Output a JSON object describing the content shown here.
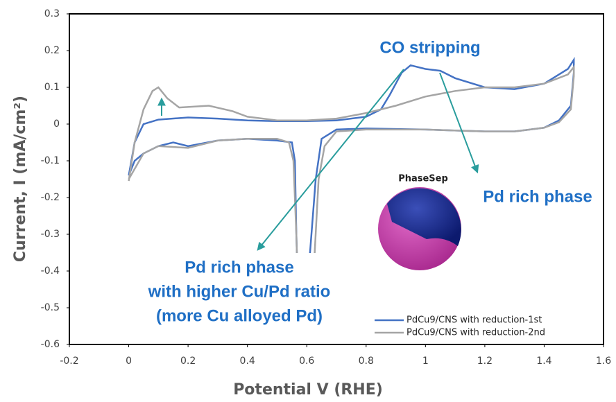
{
  "chart_data": {
    "type": "line",
    "x_label": "Potential V (RHE)",
    "y_label": "Current, I (mA/cm²)",
    "xlim": [
      -0.2,
      1.6
    ],
    "ylim": [
      -0.6,
      0.3
    ],
    "xticks": [
      -0.2,
      0,
      0.2,
      0.4,
      0.6,
      0.8,
      1,
      1.2,
      1.4,
      1.6
    ],
    "yticks": [
      -0.6,
      -0.5,
      -0.4,
      -0.3,
      -0.2,
      -0.1,
      0,
      0.1,
      0.2,
      0.3
    ],
    "annotations": [
      "CO stripping",
      "Pd rich phase",
      "Pd rich phase",
      "with higher Cu/Pd ratio",
      "(more Cu alloyed Pd)",
      "PhaseSep"
    ],
    "series": [
      {
        "name": "PdCu9/CNS with reduction-1st",
        "color": "#4472c4",
        "x": [
          0,
          0.02,
          0.05,
          0.1,
          0.2,
          0.3,
          0.4,
          0.5,
          0.6,
          0.7,
          0.8,
          0.85,
          0.88,
          0.92,
          0.95,
          1.0,
          1.05,
          1.1,
          1.2,
          1.3,
          1.4,
          1.48,
          1.5,
          1.5,
          1.49,
          1.45,
          1.4,
          1.3,
          1.2,
          1.0,
          0.8,
          0.7,
          0.65,
          0.63,
          0.61,
          0.6,
          0.57,
          0.565,
          0.56,
          0.55,
          0.5,
          0.4,
          0.3,
          0.2,
          0.15,
          0.1,
          0.05,
          0.02,
          0
        ],
        "values": [
          -0.14,
          -0.05,
          0,
          0.012,
          0.018,
          0.015,
          0.01,
          0.008,
          0.008,
          0.01,
          0.02,
          0.04,
          0.08,
          0.14,
          0.16,
          0.15,
          0.145,
          0.125,
          0.1,
          0.095,
          0.11,
          0.15,
          0.175,
          0.14,
          0.05,
          0.01,
          -0.01,
          -0.02,
          -0.02,
          -0.015,
          -0.012,
          -0.015,
          -0.04,
          -0.15,
          -0.36,
          -0.45,
          -0.45,
          -0.3,
          -0.1,
          -0.05,
          -0.045,
          -0.04,
          -0.045,
          -0.06,
          -0.05,
          -0.06,
          -0.08,
          -0.1,
          -0.14
        ]
      },
      {
        "name": "PdCu9/CNS with reduction-2nd",
        "color": "#a5a5a5",
        "x": [
          0,
          0.02,
          0.05,
          0.08,
          0.1,
          0.13,
          0.17,
          0.27,
          0.35,
          0.4,
          0.5,
          0.6,
          0.7,
          0.8,
          0.9,
          1.0,
          1.1,
          1.2,
          1.3,
          1.4,
          1.48,
          1.5,
          1.5,
          1.49,
          1.45,
          1.4,
          1.3,
          1.2,
          1.0,
          0.8,
          0.7,
          0.66,
          0.64,
          0.62,
          0.57,
          0.565,
          0.555,
          0.54,
          0.5,
          0.4,
          0.3,
          0.2,
          0.1,
          0.05,
          0
        ],
        "values": [
          -0.155,
          -0.05,
          0.04,
          0.09,
          0.1,
          0.07,
          0.045,
          0.05,
          0.035,
          0.02,
          0.01,
          0.01,
          0.015,
          0.03,
          0.05,
          0.075,
          0.09,
          0.1,
          0.1,
          0.11,
          0.135,
          0.155,
          0.13,
          0.04,
          0.005,
          -0.01,
          -0.02,
          -0.02,
          -0.015,
          -0.015,
          -0.02,
          -0.06,
          -0.15,
          -0.45,
          -0.45,
          -0.3,
          -0.1,
          -0.05,
          -0.04,
          -0.04,
          -0.045,
          -0.065,
          -0.06,
          -0.08,
          -0.15
        ]
      }
    ]
  }
}
